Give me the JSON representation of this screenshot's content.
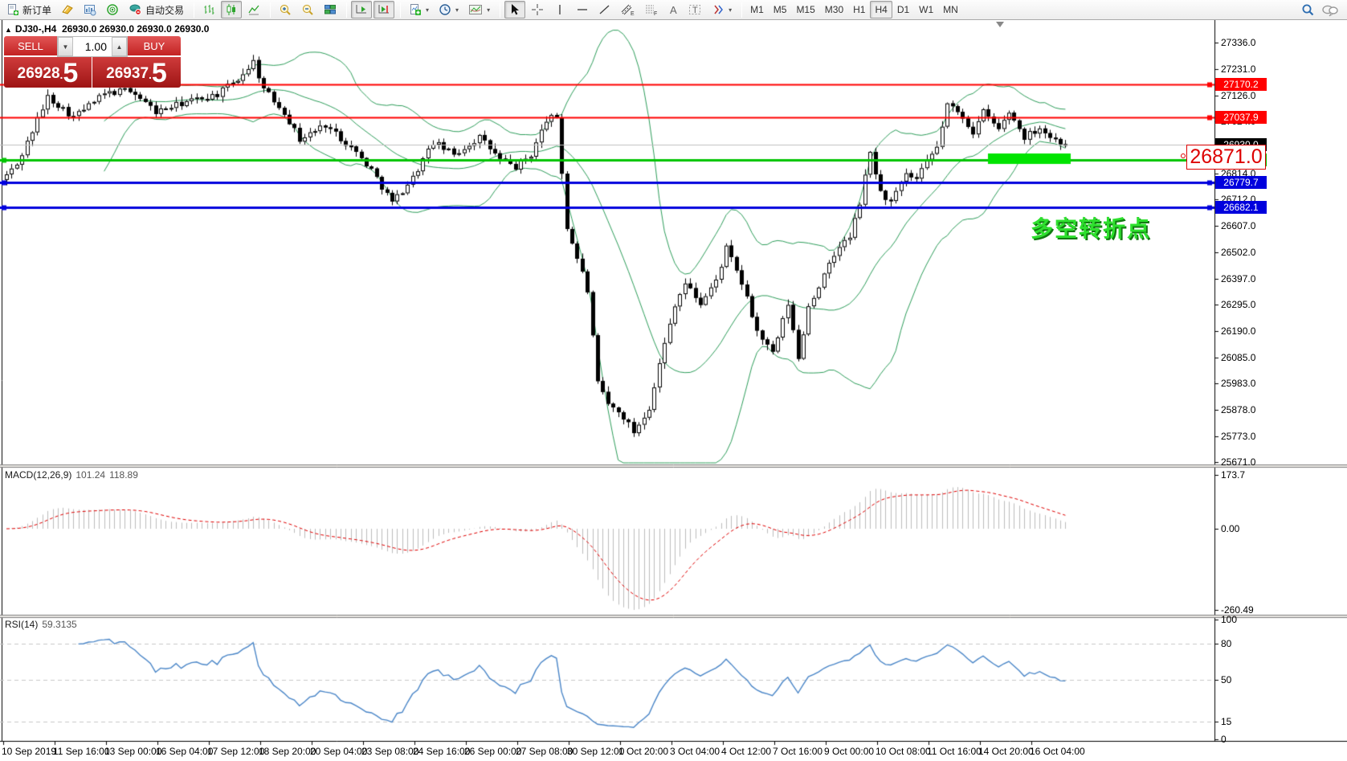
{
  "toolbar": {
    "new_order_label": "新订单",
    "auto_trading_label": "自动交易",
    "timeframes": [
      "M1",
      "M5",
      "M15",
      "M30",
      "H1",
      "H4",
      "D1",
      "W1",
      "MN"
    ],
    "active_timeframe": "H4"
  },
  "chart": {
    "title_symbol": "DJ30-,H4",
    "title_ohlc": "26930.0 26930.0 26930.0 26930.0",
    "collapse_arrow": "▲",
    "trade_panel": {
      "sell_label": "SELL",
      "buy_label": "BUY",
      "volume": "1.00",
      "sell_int": "26928",
      "sell_dot": ".",
      "sell_frac": "5",
      "buy_int": "26937",
      "buy_dot": ".",
      "buy_frac": "5",
      "spin_down": "▼",
      "spin_up": "▲"
    },
    "annotation_text": "多空转折点",
    "annotation_color": "#2ee02e",
    "price_callout": "26871.0",
    "hlines": [
      {
        "price": 27170.2,
        "label": "27170.2",
        "color": "#ff0000",
        "width": 2
      },
      {
        "price": 27037.9,
        "label": "27037.9",
        "color": "#ff0000",
        "width": 2
      },
      {
        "price": 26871.0,
        "label": "26871.0",
        "color": "#00c400",
        "width": 3
      },
      {
        "price": 26779.7,
        "label": "26779.7",
        "color": "#0000dd",
        "width": 3
      },
      {
        "price": 26682.1,
        "label": "26682.1",
        "color": "#0000dd",
        "width": 3
      }
    ],
    "current_price": {
      "label": "26930.0",
      "price": 26930.0,
      "badge_bg": "#000000"
    },
    "price_ticks": [
      "27336.0",
      "27231.0",
      "27126.0",
      "27024.0",
      "26919.0",
      "26814.0",
      "26712.0",
      "26607.0",
      "26502.0",
      "26397.0",
      "26295.0",
      "26190.0",
      "26085.0",
      "25983.0",
      "25878.0",
      "25773.0",
      "25671.0"
    ],
    "highlight_bar_color": "#00e400"
  },
  "chart_data": {
    "type": "candlestick",
    "symbol": "DJ30-",
    "timeframe": "H4",
    "candle_count": 207,
    "price_range": [
      25671.0,
      27336.0
    ],
    "bollinger": {
      "period": 20,
      "deviation": 2
    },
    "price_path_waypoints": [
      [
        0,
        26790
      ],
      [
        3,
        26850
      ],
      [
        9,
        27120
      ],
      [
        14,
        27040
      ],
      [
        20,
        27130
      ],
      [
        25,
        27150
      ],
      [
        30,
        27060
      ],
      [
        36,
        27100
      ],
      [
        42,
        27130
      ],
      [
        46,
        27190
      ],
      [
        49,
        27260
      ],
      [
        51,
        27150
      ],
      [
        55,
        27060
      ],
      [
        58,
        26950
      ],
      [
        63,
        27010
      ],
      [
        68,
        26920
      ],
      [
        72,
        26830
      ],
      [
        76,
        26700
      ],
      [
        80,
        26800
      ],
      [
        84,
        26940
      ],
      [
        88,
        26890
      ],
      [
        93,
        26960
      ],
      [
        97,
        26870
      ],
      [
        100,
        26840
      ],
      [
        103,
        26890
      ],
      [
        106,
        27030
      ],
      [
        108,
        27040
      ],
      [
        110,
        26600
      ],
      [
        113,
        26420
      ],
      [
        114,
        26350
      ],
      [
        116,
        25980
      ],
      [
        118,
        25900
      ],
      [
        121,
        25850
      ],
      [
        123,
        25790
      ],
      [
        126,
        25890
      ],
      [
        128,
        26060
      ],
      [
        131,
        26300
      ],
      [
        133,
        26380
      ],
      [
        136,
        26300
      ],
      [
        139,
        26390
      ],
      [
        141,
        26520
      ],
      [
        144,
        26380
      ],
      [
        147,
        26190
      ],
      [
        150,
        26100
      ],
      [
        152,
        26230
      ],
      [
        153,
        26300
      ],
      [
        155,
        26080
      ],
      [
        157,
        26290
      ],
      [
        160,
        26410
      ],
      [
        163,
        26530
      ],
      [
        165,
        26560
      ],
      [
        167,
        26700
      ],
      [
        169,
        26900
      ],
      [
        171,
        26740
      ],
      [
        173,
        26700
      ],
      [
        176,
        26810
      ],
      [
        178,
        26790
      ],
      [
        180,
        26860
      ],
      [
        182,
        26920
      ],
      [
        184,
        27090
      ],
      [
        187,
        27040
      ],
      [
        189,
        26980
      ],
      [
        191,
        27060
      ],
      [
        194,
        26990
      ],
      [
        196,
        27060
      ],
      [
        199,
        26960
      ],
      [
        202,
        27000
      ],
      [
        204,
        26960
      ],
      [
        207,
        26930
      ]
    ]
  },
  "macd": {
    "name": "MACD(12,26,9)",
    "value_main": "101.24",
    "value_signal": "118.89",
    "scale_ticks": [
      "173.7",
      "0.00",
      "-260.49"
    ]
  },
  "rsi": {
    "name": "RSI(14)",
    "value": "59.3135",
    "scale_ticks": [
      "100",
      "80",
      "50",
      "15",
      "0"
    ],
    "levels": [
      80,
      50,
      15
    ]
  },
  "time_axis": {
    "labels": [
      "10 Sep 2019",
      "11 Sep 16:00",
      "13 Sep 00:00",
      "16 Sep 04:00",
      "17 Sep 12:00",
      "18 Sep 20:00",
      "20 Sep 04:00",
      "23 Sep 08:00",
      "24 Sep 16:00",
      "26 Sep 00:00",
      "27 Sep 08:00",
      "30 Sep 12:00",
      "1 Oct 20:00",
      "3 Oct 04:00",
      "4 Oct 12:00",
      "7 Oct 16:00",
      "9 Oct 00:00",
      "10 Oct 08:00",
      "11 Oct 16:00",
      "14 Oct 20:00",
      "16 Oct 04:00"
    ]
  }
}
